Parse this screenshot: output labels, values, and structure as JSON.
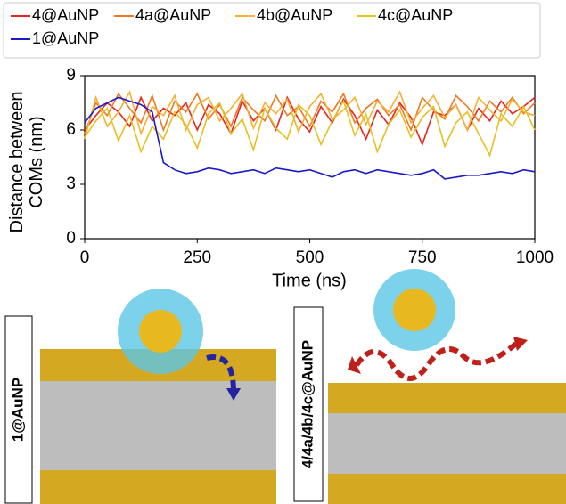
{
  "chart_data": {
    "type": "line",
    "xlabel": "Time (ns)",
    "ylabel": "Distance between COMs (nm)",
    "x": [
      0,
      25,
      50,
      75,
      100,
      125,
      150,
      175,
      200,
      225,
      250,
      275,
      300,
      325,
      350,
      375,
      400,
      425,
      450,
      475,
      500,
      525,
      550,
      575,
      600,
      625,
      650,
      675,
      700,
      725,
      750,
      775,
      800,
      825,
      850,
      875,
      900,
      925,
      950,
      975,
      1000
    ],
    "series": [
      {
        "name": "4@AuNP",
        "color": "#e8231e",
        "values": [
          6.0,
          6.8,
          7.5,
          7.0,
          6.2,
          7.8,
          6.5,
          7.2,
          6.8,
          7.5,
          6.0,
          7.4,
          6.9,
          5.8,
          7.6,
          6.5,
          7.2,
          6.0,
          7.8,
          6.6,
          5.9,
          7.3,
          6.4,
          7.7,
          6.8,
          5.5,
          7.1,
          6.3,
          7.5,
          6.7,
          5.2,
          7.0,
          6.8,
          7.4,
          6.0,
          7.2,
          6.5,
          7.6,
          6.9,
          7.3,
          7.8
        ]
      },
      {
        "name": "4a@AuNP",
        "color": "#f07820",
        "values": [
          5.8,
          7.5,
          6.8,
          8.0,
          7.2,
          6.4,
          7.9,
          6.0,
          7.6,
          7.0,
          8.0,
          6.6,
          7.4,
          6.2,
          7.8,
          7.1,
          6.5,
          7.9,
          6.8,
          7.3,
          6.2,
          7.6,
          7.0,
          8.0,
          6.4,
          7.2,
          7.7,
          6.8,
          7.4,
          6.0,
          7.8,
          7.1,
          6.6,
          7.9,
          7.3,
          6.5,
          7.6,
          7.0,
          7.8,
          6.9,
          7.5
        ]
      },
      {
        "name": "4b@AuNP",
        "color": "#f5b030",
        "values": [
          5.5,
          7.8,
          6.2,
          7.0,
          8.1,
          5.8,
          7.3,
          6.8,
          7.9,
          6.0,
          7.4,
          7.8,
          6.5,
          7.2,
          8.0,
          6.1,
          7.5,
          6.9,
          7.7,
          5.9,
          7.3,
          8.0,
          6.6,
          7.1,
          7.8,
          6.3,
          7.6,
          7.0,
          8.1,
          6.4,
          7.2,
          7.9,
          6.7,
          7.4,
          6.0,
          7.8,
          7.1,
          6.5,
          7.7,
          7.0,
          6.8
        ]
      },
      {
        "name": "4c@AuNP",
        "color": "#e6c020",
        "values": [
          5.6,
          6.5,
          7.2,
          5.4,
          6.8,
          4.8,
          6.2,
          5.5,
          7.0,
          6.3,
          5.0,
          6.9,
          7.5,
          5.8,
          6.6,
          4.9,
          7.2,
          6.1,
          5.5,
          7.4,
          6.8,
          5.2,
          6.5,
          7.6,
          5.7,
          6.9,
          4.8,
          6.3,
          7.1,
          5.6,
          6.7,
          7.3,
          5.1,
          6.4,
          7.0,
          5.8,
          4.6,
          6.9,
          6.2,
          7.3,
          6.0
        ]
      },
      {
        "name": "1@AuNP",
        "color": "#1a1acc",
        "values": [
          6.4,
          7.2,
          7.5,
          7.8,
          7.6,
          7.4,
          7.0,
          4.2,
          3.8,
          3.6,
          3.7,
          3.9,
          3.8,
          3.6,
          3.7,
          3.8,
          3.6,
          3.9,
          3.8,
          3.7,
          3.8,
          3.6,
          3.4,
          3.7,
          3.8,
          3.6,
          3.8,
          3.7,
          3.6,
          3.5,
          3.6,
          3.8,
          3.3,
          3.4,
          3.5,
          3.5,
          3.6,
          3.7,
          3.6,
          3.8,
          3.7
        ]
      }
    ],
    "xlim": [
      0,
      1000
    ],
    "xticks": [
      0,
      250,
      500,
      750,
      1000
    ],
    "ylim": [
      0,
      9
    ],
    "yticks": [
      0,
      3,
      6,
      9
    ],
    "annotations": [
      "1@AuNP",
      "4/4a/4b/4c@AuNP"
    ]
  }
}
